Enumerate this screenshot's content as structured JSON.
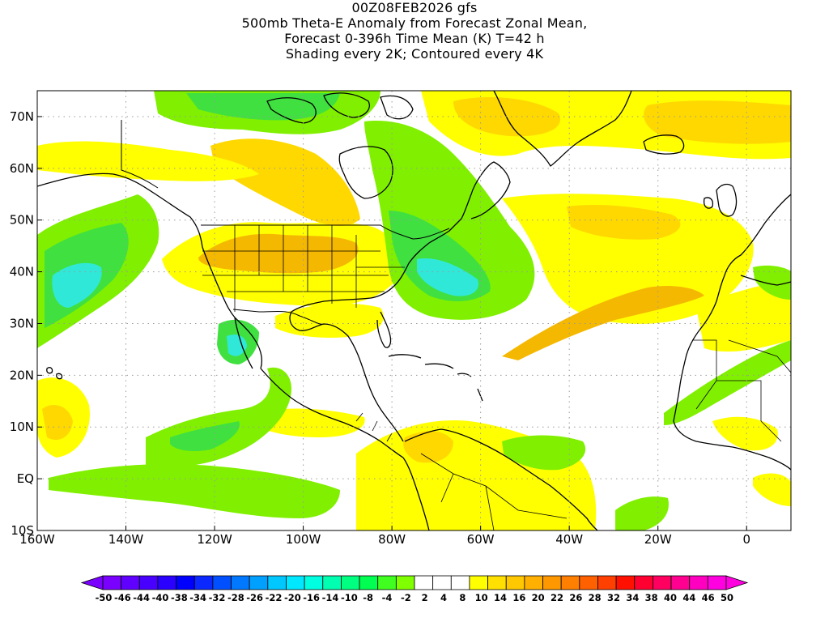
{
  "title": {
    "line1": "00Z08FEB2026 gfs",
    "line2": "500mb Theta-E Anomaly from Forecast Zonal Mean,",
    "line3": "Forecast 0-396h Time Mean (K) T=42 h",
    "line4": "Shading every 2K; Contoured every 4K"
  },
  "map": {
    "region": "North Atlantic / Americas",
    "lon_range": [
      -160,
      10
    ],
    "lat_range": [
      -10,
      75
    ],
    "grid": "dotted",
    "lon_labels": [
      "160W",
      "140W",
      "120W",
      "100W",
      "80W",
      "60W",
      "40W",
      "20W",
      "0"
    ],
    "lat_labels": [
      "70N",
      "60N",
      "50N",
      "40N",
      "30N",
      "20N",
      "10N",
      "EQ",
      "10S"
    ]
  },
  "colorbar": {
    "labels": [
      "-50",
      "-46",
      "-44",
      "-40",
      "-38",
      "-34",
      "-32",
      "-28",
      "-26",
      "-22",
      "-20",
      "-16",
      "-14",
      "-10",
      "-8",
      "-4",
      "-2",
      "2",
      "4",
      "8",
      "10",
      "14",
      "16",
      "20",
      "22",
      "26",
      "28",
      "32",
      "34",
      "38",
      "40",
      "44",
      "46",
      "50"
    ],
    "colors": [
      "#7a00ff",
      "#6000ff",
      "#4800ff",
      "#2a00ff",
      "#0000ff",
      "#0a28ff",
      "#0050ff",
      "#0078ff",
      "#00a0ff",
      "#00c8ff",
      "#00e8ff",
      "#00ffe0",
      "#00ffb0",
      "#00ff80",
      "#00ff50",
      "#40ff20",
      "#80ff00",
      "#ffffff",
      "#ffffff",
      "#ffffff",
      "#ffff00",
      "#ffe000",
      "#ffc800",
      "#ffb000",
      "#ff9800",
      "#ff8000",
      "#ff6000",
      "#ff4000",
      "#ff1000",
      "#ff0030",
      "#ff0060",
      "#ff0090",
      "#ff00c0",
      "#ff00e0"
    ]
  },
  "shading_colors": {
    "pos_2": "#ffff00",
    "pos_4": "#ffd800",
    "pos_6": "#f5b800",
    "neg_2": "#80f000",
    "neg_4": "#40e040",
    "neg_6": "#20e8a0",
    "neg_8": "#30e8d8",
    "coast": "#000000"
  }
}
